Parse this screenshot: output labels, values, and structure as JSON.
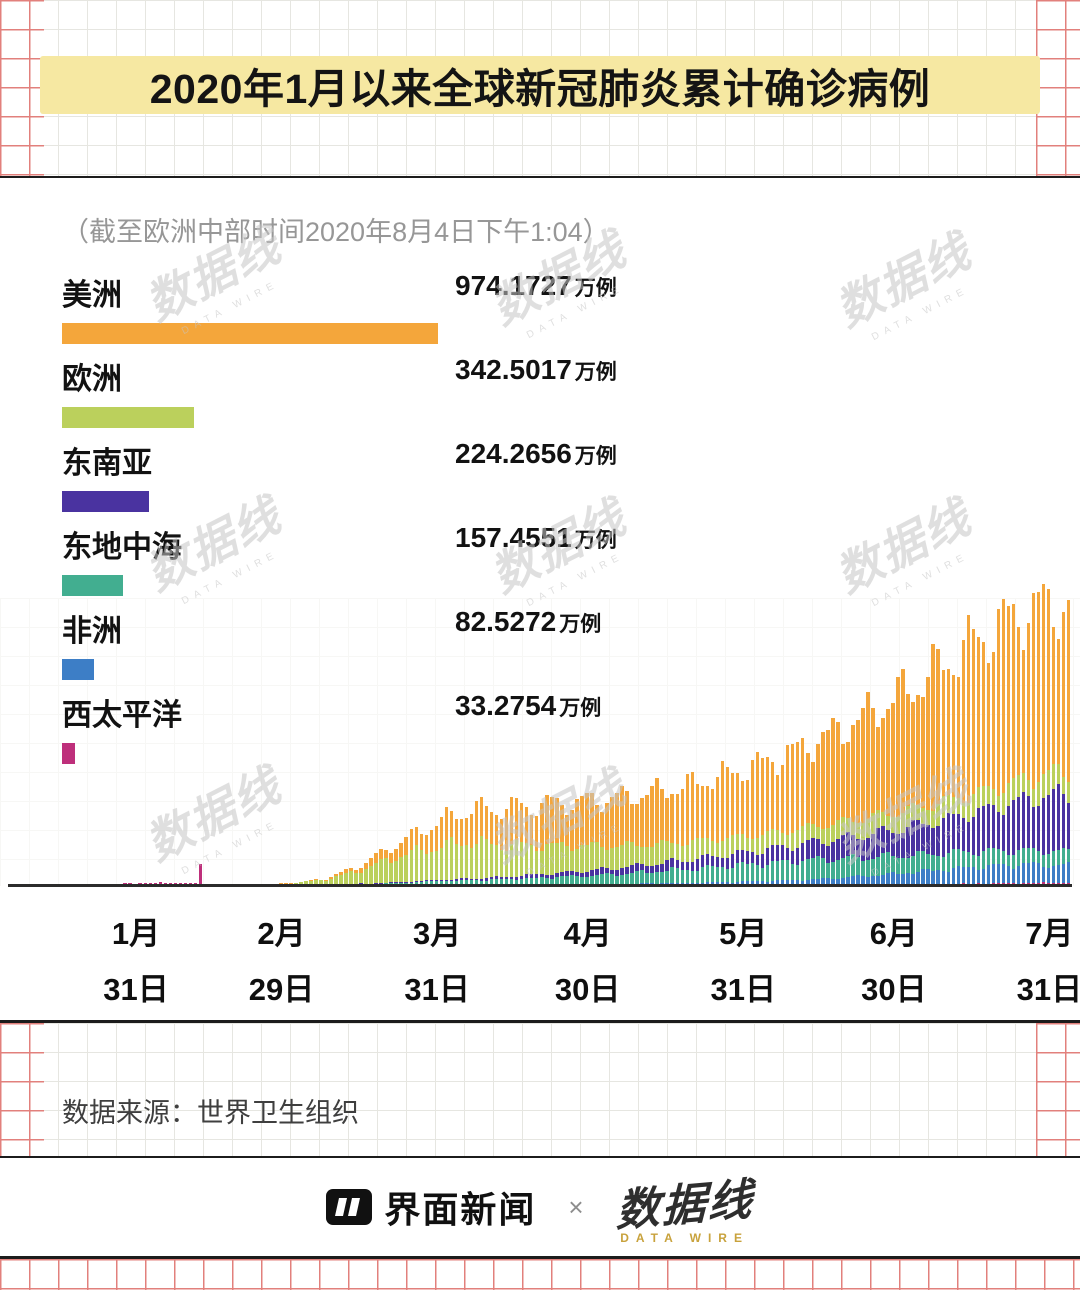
{
  "title": "2020年1月以来全球新冠肺炎累计确诊病例",
  "subtitle": "（截至欧洲中部时间2020年8月4日下午1:04）",
  "source": "数据来源：世界卫生组织",
  "colors": {
    "title_highlight": "#F6E8A2",
    "grid_gray": "#E6E6E1",
    "grid_red": "#E2807C",
    "axis": "#2B2B2B",
    "americas": "#F4A63B",
    "europe": "#BBD05C",
    "southeast_asia": "#4A33A0",
    "east_mediterranean": "#42AE90",
    "africa": "#3D7EC6",
    "west_pacific": "#BE2F7B"
  },
  "legend": [
    {
      "label": "美洲",
      "value": "974.1727",
      "unit": "万例",
      "color": "#F4A63B"
    },
    {
      "label": "欧洲",
      "value": "342.5017",
      "unit": "万例",
      "color": "#BBD05C"
    },
    {
      "label": "东南亚",
      "value": "224.2656",
      "unit": "万例",
      "color": "#4A33A0"
    },
    {
      "label": "东地中海",
      "value": "157.4551",
      "unit": "万例",
      "color": "#42AE90"
    },
    {
      "label": "非洲",
      "value": "82.5272",
      "unit": "万例",
      "color": "#3D7EC6"
    },
    {
      "label": "西太平洋",
      "value": "33.2754",
      "unit": "万例",
      "color": "#BE2F7B"
    }
  ],
  "chart_data": {
    "type": "bar",
    "stacked": true,
    "title": "2020年1月以来全球新冠肺炎累计确诊病例",
    "n_days": 212,
    "anchor_step_days": 7,
    "x_ticks": [
      {
        "day": 25,
        "month": "1月",
        "date": "31日"
      },
      {
        "day": 54,
        "month": "2月",
        "date": "29日"
      },
      {
        "day": 85,
        "month": "3月",
        "date": "31日"
      },
      {
        "day": 115,
        "month": "4月",
        "date": "30日"
      },
      {
        "day": 146,
        "month": "5月",
        "date": "31日"
      },
      {
        "day": 176,
        "month": "6月",
        "date": "30日"
      },
      {
        "day": 207,
        "month": "7月",
        "date": "31日"
      }
    ],
    "series": [
      {
        "name": "西太平洋",
        "color": "#BE2F7B",
        "anchors": [
          20,
          60,
          150,
          1800,
          3500,
          3000,
          1800,
          600,
          300,
          300,
          400,
          500,
          800,
          700,
          500,
          400,
          300,
          300,
          350,
          400,
          450,
          500,
          600,
          700,
          900,
          1200,
          1600,
          2200,
          2800,
          3200,
          3400
        ],
        "spikes": [
          {
            "day": 38,
            "value": 20000
          }
        ]
      },
      {
        "name": "非洲",
        "color": "#3D7EC6",
        "anchors": [
          0,
          0,
          0,
          0,
          0,
          0,
          0,
          0,
          5,
          30,
          150,
          400,
          700,
          900,
          1100,
          1300,
          1500,
          1800,
          2200,
          2700,
          3300,
          4000,
          5000,
          6500,
          8500,
          11000,
          13500,
          16000,
          18000,
          19000,
          18000
        ]
      },
      {
        "name": "东地中海",
        "color": "#42AE90",
        "anchors": [
          0,
          0,
          0,
          0,
          2,
          10,
          100,
          400,
          900,
          1100,
          1500,
          2200,
          3200,
          4200,
          5200,
          6500,
          8000,
          9500,
          11500,
          13500,
          15500,
          17500,
          19000,
          20000,
          19500,
          18500,
          17500,
          16500,
          15500,
          14500,
          14000
        ]
      },
      {
        "name": "东南亚",
        "color": "#4A33A0",
        "anchors": [
          0,
          0,
          0,
          5,
          10,
          15,
          20,
          50,
          100,
          200,
          400,
          700,
          1200,
          1800,
          2500,
          3500,
          4800,
          6000,
          7500,
          9000,
          11000,
          13000,
          15500,
          18500,
          22000,
          26000,
          31000,
          37000,
          44000,
          53000,
          60000
        ]
      },
      {
        "name": "欧洲",
        "color": "#BBD05C",
        "anchors": [
          0,
          0,
          0,
          10,
          30,
          40,
          60,
          300,
          1500,
          5000,
          14000,
          26000,
          33000,
          38000,
          33000,
          30000,
          27000,
          24000,
          21000,
          19000,
          17500,
          16500,
          16000,
          16500,
          17000,
          17500,
          18000,
          19000,
          20000,
          21500,
          23000
        ]
      },
      {
        "name": "美洲",
        "color": "#F4A63B",
        "anchors": [
          0,
          0,
          0,
          3,
          5,
          8,
          15,
          60,
          300,
          1200,
          5000,
          13000,
          24000,
          33000,
          38000,
          42000,
          45000,
          48000,
          52000,
          57000,
          63000,
          70000,
          78000,
          88000,
          100000,
          115000,
          130000,
          150000,
          165000,
          175000,
          172000
        ]
      }
    ],
    "cumulative_totals_wan": {
      "美洲": 974.1727,
      "欧洲": 342.5017,
      "东南亚": 224.2656,
      "东地中海": 157.4551,
      "非洲": 82.5272,
      "西太平洋": 33.2754
    }
  },
  "watermark": {
    "text": "数据线",
    "sub": "DATA WIRE"
  },
  "footer": {
    "jiemian": "界面新闻",
    "separator": "×",
    "datawire": "数据线",
    "datawire_sub": "DATA WIRE"
  }
}
